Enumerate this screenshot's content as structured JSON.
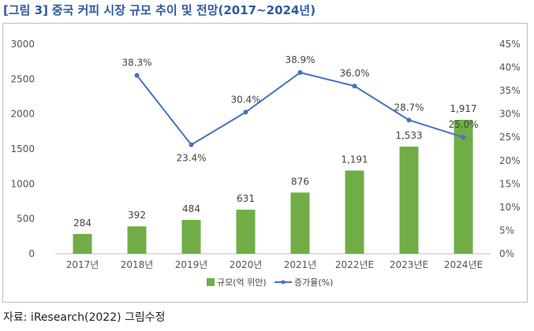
{
  "header": {
    "tag": "[그림 3]",
    "title": "중국 커피 시장 규모 추이 및 전망(2017~2024년)"
  },
  "source": "자료: iResearch(2022) 그림수정",
  "colors": {
    "bar": "#70ad47",
    "line": "#4472c4",
    "title": "#2c5aa0"
  },
  "chart_data": {
    "type": "bar",
    "categories": [
      "2017년",
      "2018년",
      "2019년",
      "2020년",
      "2021년",
      "2022년E",
      "2023년E",
      "2024년E"
    ],
    "series": [
      {
        "name": "규모(억 위안)",
        "type": "bar",
        "axis": "left",
        "values": [
          284,
          392,
          484,
          631,
          876,
          1191,
          1533,
          1917
        ],
        "labels": [
          "284",
          "392",
          "484",
          "631",
          "876",
          "1,191",
          "1,533",
          "1,917"
        ]
      },
      {
        "name": "증가율(%)",
        "type": "line",
        "axis": "right",
        "values": [
          null,
          38.3,
          23.4,
          30.4,
          38.9,
          36.0,
          28.7,
          25.0
        ],
        "labels": [
          null,
          "38.3%",
          "23.4%",
          "30.4%",
          "38.9%",
          "36.0%",
          "28.7%",
          "25.0%"
        ]
      }
    ],
    "y_left": {
      "min": 0,
      "max": 3000,
      "ticks": [
        "0",
        "500",
        "1000",
        "1500",
        "2000",
        "2500",
        "3000"
      ]
    },
    "y_right": {
      "min": 0,
      "max": 45,
      "ticks": [
        "0%",
        "5%",
        "10%",
        "15%",
        "20%",
        "25%",
        "30%",
        "35%",
        "40%",
        "45%"
      ]
    },
    "legend_position": "bottom",
    "grid": false
  }
}
